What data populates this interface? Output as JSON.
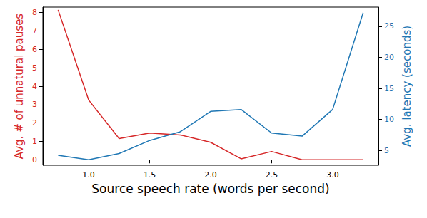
{
  "chart_data": {
    "type": "line",
    "x_label": "Source speech rate (words per second)",
    "y_label": "Avg. # of unnatural pauses",
    "y2_label": "Avg. latency (seconds)",
    "x": [
      0.75,
      1.0,
      1.25,
      1.5,
      1.75,
      2.0,
      2.25,
      2.5,
      2.75,
      3.0,
      3.25
    ],
    "xlim": [
      0.625,
      3.375
    ],
    "xticks": [
      {
        "value": 1,
        "label": "1.0"
      },
      {
        "value": 1.5,
        "label": "1.5"
      },
      {
        "value": 2,
        "label": "2.0"
      },
      {
        "value": 2.5,
        "label": "2.5"
      },
      {
        "value": 3,
        "label": "3.0"
      }
    ],
    "ylim": [
      -0.3,
      8.3
    ],
    "yticks": [
      0,
      1,
      2,
      3,
      4,
      5,
      6,
      7,
      8
    ],
    "y2lim": [
      2.6,
      28.1
    ],
    "y2ticks": [
      5,
      10,
      15,
      20,
      25
    ],
    "grid": false,
    "series": [
      {
        "name": "Avg. # of unnatural pauses",
        "color": "#d62728",
        "values": [
          8.15,
          3.25,
          1.15,
          1.45,
          1.35,
          0.95,
          0.05,
          0.45,
          0,
          0,
          0
        ]
      },
      {
        "name": "Avg. latency (seconds)",
        "color": "#1f77b4",
        "axis": "y2",
        "values": [
          4.2,
          3.5,
          4.5,
          6.6,
          8.0,
          11.3,
          11.6,
          7.8,
          7.3,
          11.6,
          27.2
        ]
      }
    ]
  }
}
